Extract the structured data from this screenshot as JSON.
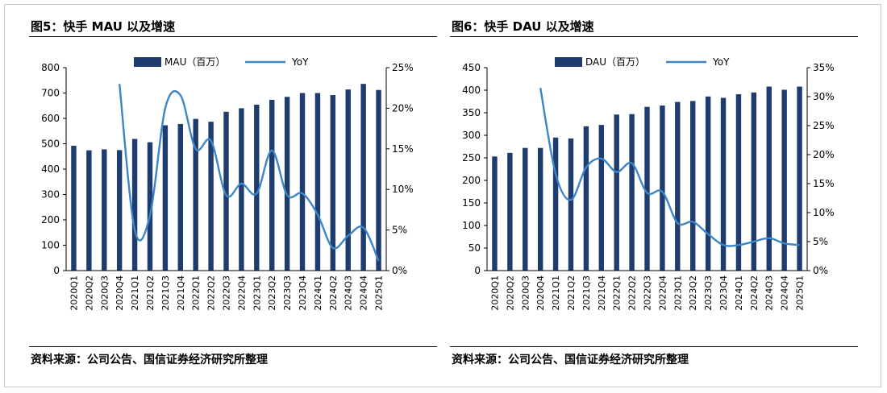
{
  "charts": [
    {
      "figure_title": "图5：快手 MAU 以及增速",
      "source": "资料来源：公司公告、国信证券经济研究所整理"
    },
    {
      "figure_title": "图6：快手 DAU 以及增速",
      "source": "资料来源：公司公告、国信证券经济研究所整理"
    }
  ],
  "chart_data": [
    {
      "type": "bar",
      "title": "图5：快手 MAU 以及增速",
      "categories": [
        "2020Q1",
        "2020Q2",
        "2020Q3",
        "2020Q4",
        "2021Q1",
        "2021Q2",
        "2021Q3",
        "2021Q4",
        "2022Q1",
        "2022Q2",
        "2022Q3",
        "2022Q4",
        "2023Q1",
        "2023Q2",
        "2023Q3",
        "2023Q4",
        "2024Q1",
        "2024Q2",
        "2024Q3",
        "2024Q4",
        "2025Q1"
      ],
      "series": [
        {
          "name": "MAU（百万）",
          "kind": "bar",
          "axis": "left",
          "values": [
            492,
            474,
            478,
            475,
            519,
            506,
            573,
            578,
            598,
            587,
            626,
            640,
            654,
            673,
            685,
            700,
            700,
            692,
            714,
            736,
            712
          ]
        },
        {
          "name": "YoY",
          "kind": "line",
          "axis": "right",
          "values": [
            null,
            null,
            null,
            23.0,
            5.0,
            6.8,
            20.0,
            21.6,
            15.0,
            16.0,
            9.3,
            10.7,
            9.5,
            14.8,
            9.3,
            9.5,
            6.9,
            2.8,
            4.3,
            5.3,
            1.2
          ]
        }
      ],
      "ylim_left": [
        0,
        800
      ],
      "yticks_left": [
        "0",
        "100",
        "200",
        "300",
        "400",
        "500",
        "600",
        "700",
        "800"
      ],
      "ylim_right": [
        0,
        25
      ],
      "yticks_right": [
        "0%",
        "5%",
        "10%",
        "15%",
        "20%",
        "25%"
      ],
      "legend_position": "top",
      "grid": false,
      "bar_color": "#1e3d6e",
      "line_color": "#3d85c6"
    },
    {
      "type": "bar",
      "title": "图6：快手 DAU 以及增速",
      "categories": [
        "2020Q1",
        "2020Q2",
        "2020Q3",
        "2020Q4",
        "2021Q1",
        "2021Q2",
        "2021Q3",
        "2021Q4",
        "2022Q1",
        "2022Q2",
        "2022Q3",
        "2022Q4",
        "2023Q1",
        "2023Q2",
        "2023Q3",
        "2023Q4",
        "2024Q1",
        "2024Q2",
        "2024Q3",
        "2024Q4",
        "2025Q1"
      ],
      "series": [
        {
          "name": "DAU（百万）",
          "kind": "bar",
          "axis": "left",
          "values": [
            253,
            261,
            272,
            272,
            295,
            293,
            320,
            323,
            346,
            347,
            363,
            366,
            374,
            376,
            386,
            383,
            391,
            395,
            408,
            401,
            408
          ]
        },
        {
          "name": "YoY",
          "kind": "line",
          "axis": "right",
          "values": [
            null,
            null,
            null,
            31.5,
            16.7,
            12.2,
            17.8,
            19.3,
            17.0,
            18.5,
            13.4,
            13.6,
            8.2,
            8.4,
            6.3,
            4.4,
            4.4,
            5.0,
            5.6,
            4.7,
            4.4
          ]
        }
      ],
      "ylim_left": [
        0,
        450
      ],
      "yticks_left": [
        "0",
        "50",
        "100",
        "150",
        "200",
        "250",
        "300",
        "350",
        "400",
        "450"
      ],
      "ylim_right": [
        0,
        35
      ],
      "yticks_right": [
        "0%",
        "5%",
        "10%",
        "15%",
        "20%",
        "25%",
        "30%",
        "35%"
      ],
      "legend_position": "top",
      "grid": false,
      "bar_color": "#1e3d6e",
      "line_color": "#3d85c6"
    }
  ]
}
